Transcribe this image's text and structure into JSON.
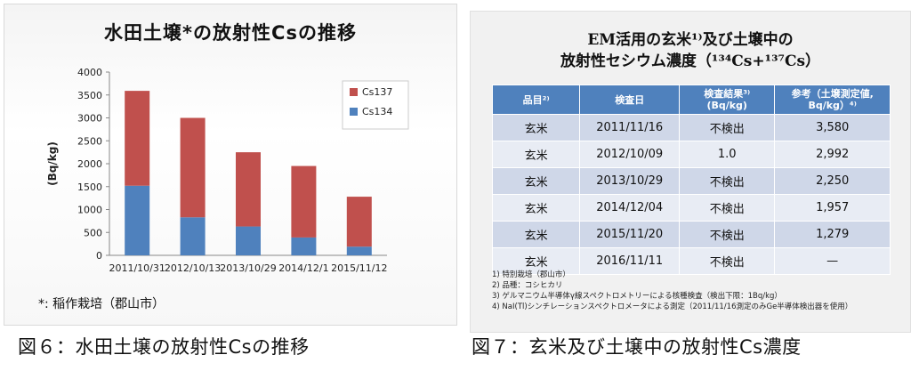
{
  "left": {
    "title": "水田土壌*の放射性Csの推移",
    "footnote": "*:  稲作栽培（郡山市）",
    "caption": "図６：水田土壌の放射性Csの推移"
  },
  "chart_data": {
    "type": "bar",
    "stacked": true,
    "categories": [
      "2011/10/31",
      "2012/10/13",
      "2013/10/29",
      "2014/12/1",
      "2015/11/12"
    ],
    "series": [
      {
        "name": "Cs134",
        "color": "#4f81bd",
        "values": [
          1520,
          830,
          630,
          390,
          190
        ]
      },
      {
        "name": "Cs137",
        "color": "#c0504d",
        "values": [
          2070,
          2170,
          1620,
          1560,
          1090
        ]
      }
    ],
    "ylabel": "(Bq/kg)",
    "ylim": [
      0,
      4000
    ],
    "yticks": [
      0,
      500,
      1000,
      1500,
      2000,
      2500,
      3000,
      3500,
      4000
    ],
    "grid": false,
    "legend": "top-right"
  },
  "right": {
    "title_line1": "EM活用の玄米¹⁾及び土壌中の",
    "title_line2": "放射性セシウム濃度（¹³⁴Cs+¹³⁷Cs）",
    "headers": [
      "品目²⁾",
      "検査日",
      "検査結果³⁾\n(Bq/kg)",
      "参考（土壌測定値,\nBq/kg）⁴⁾"
    ],
    "rows": [
      [
        "玄米",
        "2011/11/16",
        "不検出",
        "3,580"
      ],
      [
        "玄米",
        "2012/10/09",
        "1.0",
        "2,992"
      ],
      [
        "玄米",
        "2013/10/29",
        "不検出",
        "2,250"
      ],
      [
        "玄米",
        "2014/12/04",
        "不検出",
        "1,957"
      ],
      [
        "玄米",
        "2015/11/20",
        "不検出",
        "1,279"
      ],
      [
        "玄米",
        "2016/11/11",
        "不検出",
        "—"
      ]
    ],
    "notes": [
      "1)  特別栽培（郡山市）",
      "2)  品種：コシヒカリ",
      "3)  ゲルマニウム半導体γ線スペクトロメトリーによる核種検査（検出下限：1Bq/kg）",
      "4)  NaI(Tl)シンチレーションスペクトロメータによる測定（2011/11/16測定のみGe半導体検出器を使用）"
    ],
    "caption": "図７：玄米及び土壌中の放射性Cs濃度"
  }
}
